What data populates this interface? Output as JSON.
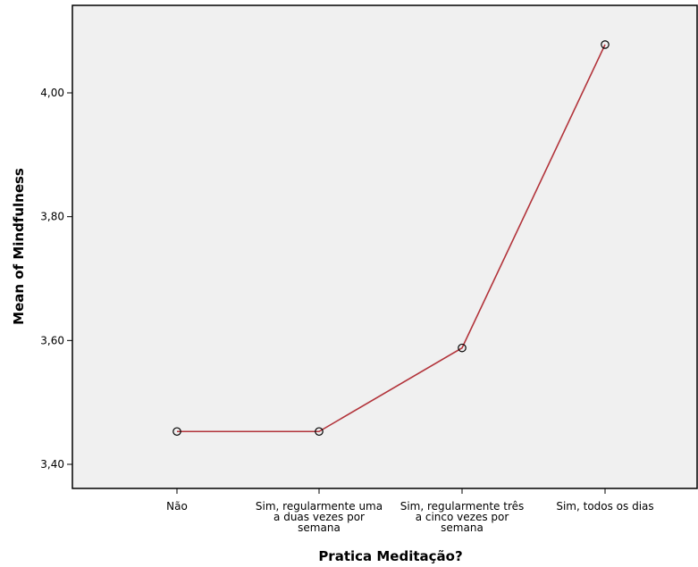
{
  "chart_data": {
    "type": "line",
    "xlabel": "Pratica Meditação?",
    "ylabel": "Mean of Mindfulness",
    "categories": [
      [
        "Não"
      ],
      [
        "Sim, regularmente uma",
        "a duas vezes por",
        "semana"
      ],
      [
        "Sim, regularmente três",
        "a cinco vezes por",
        "semana"
      ],
      [
        "Sim, todos os dias"
      ]
    ],
    "y_tick_values": [
      3.4,
      3.6,
      3.8,
      4.0
    ],
    "y_tick_labels": [
      "3,40",
      "3,60",
      "3,80",
      "4,00"
    ],
    "ylim": [
      3.38,
      4.14
    ],
    "values": [
      3.453,
      3.453,
      3.588,
      4.078
    ],
    "grid": false,
    "line_color": "#b2333a",
    "plot_background": "#f0f0f0"
  }
}
